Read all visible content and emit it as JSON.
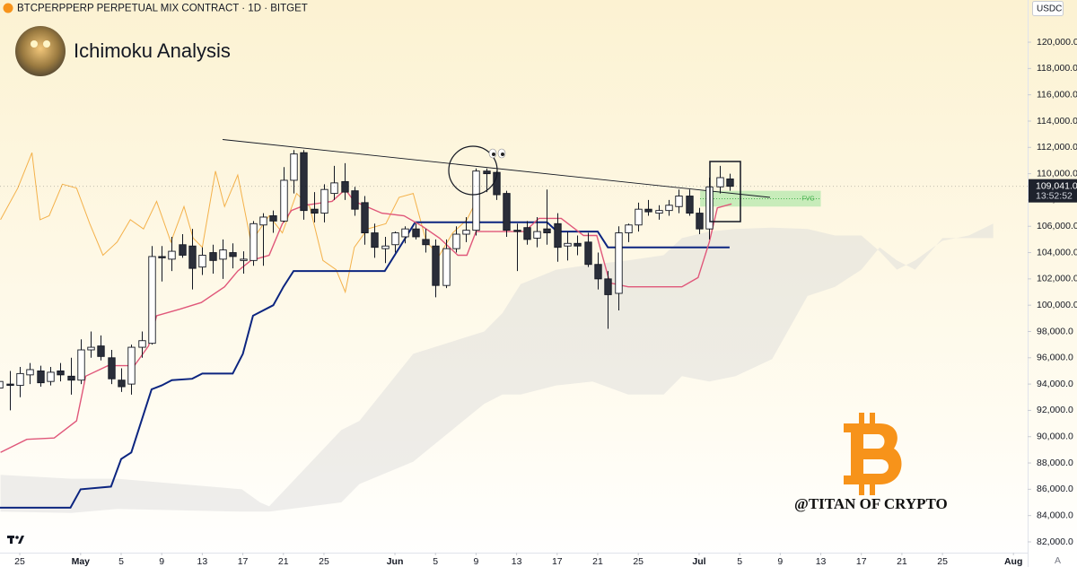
{
  "header": {
    "symbol": "BTCPERPPERP PERPETUAL MIX CONTRACT · 1D · BITGET",
    "title": "Ichimoku Analysis",
    "currency": "USDC",
    "watermark": "@TITAN OF CRYPTO",
    "auto_button": "A"
  },
  "chart_data": {
    "type": "candlestick",
    "xlim": [
      -1.95,
      99.4
    ],
    "ylim": [
      81180,
      123210
    ],
    "xticks": [
      {
        "value": 0,
        "label": "25"
      },
      {
        "value": 6,
        "label": "May"
      },
      {
        "value": 10,
        "label": "5"
      },
      {
        "value": 14,
        "label": "9"
      },
      {
        "value": 18,
        "label": "13"
      },
      {
        "value": 22,
        "label": "17"
      },
      {
        "value": 26,
        "label": "21"
      },
      {
        "value": 30,
        "label": "25"
      },
      {
        "value": 37,
        "label": "Jun"
      },
      {
        "value": 41,
        "label": "5"
      },
      {
        "value": 45,
        "label": "9"
      },
      {
        "value": 49,
        "label": "13"
      },
      {
        "value": 53,
        "label": "17"
      },
      {
        "value": 57,
        "label": "21"
      },
      {
        "value": 61,
        "label": "25"
      },
      {
        "value": 67,
        "label": "Jul"
      },
      {
        "value": 71,
        "label": "5"
      },
      {
        "value": 75,
        "label": "9"
      },
      {
        "value": 79,
        "label": "13"
      },
      {
        "value": 83,
        "label": "17"
      },
      {
        "value": 87,
        "label": "21"
      },
      {
        "value": 91,
        "label": "25"
      },
      {
        "value": 98,
        "label": "Aug"
      }
    ],
    "yticks": [
      {
        "value": 82000,
        "label": "82,000.0"
      },
      {
        "value": 84000,
        "label": "84,000.0"
      },
      {
        "value": 86000,
        "label": "86,000.0"
      },
      {
        "value": 88000,
        "label": "88,000.0"
      },
      {
        "value": 90000,
        "label": "90,000.0"
      },
      {
        "value": 92000,
        "label": "92,000.0"
      },
      {
        "value": 94000,
        "label": "94,000.0"
      },
      {
        "value": 96000,
        "label": "96,000.0"
      },
      {
        "value": 98000,
        "label": "98,000.0"
      },
      {
        "value": 100000,
        "label": "100,000.0"
      },
      {
        "value": 102000,
        "label": "102,000.0"
      },
      {
        "value": 104000,
        "label": "104,000.0"
      },
      {
        "value": 106000,
        "label": "106,000.0"
      },
      {
        "value": 108000,
        "label": "108,000.0"
      },
      {
        "value": 110000,
        "label": "110,000.0"
      },
      {
        "value": 112000,
        "label": "112,000.0"
      },
      {
        "value": 114000,
        "label": "114,000.0"
      },
      {
        "value": 116000,
        "label": "116,000.0"
      },
      {
        "value": 118000,
        "label": "118,000.0"
      },
      {
        "value": 120000,
        "label": "120,000.0"
      }
    ],
    "up_color": "#ffffff",
    "down_color": "#2a2e39",
    "candles": {
      "x": [
        -2,
        -1,
        0,
        1,
        2,
        3,
        4,
        5,
        6,
        7,
        8,
        9,
        10,
        11,
        12,
        13,
        14,
        15,
        16,
        17,
        18,
        19,
        20,
        21,
        22,
        23,
        24,
        25,
        26,
        27,
        28,
        29,
        30,
        31,
        32,
        33,
        34,
        35,
        36,
        37,
        38,
        39,
        40,
        41,
        42,
        43,
        44,
        45,
        46,
        47,
        48,
        49,
        50,
        51,
        52,
        53,
        54,
        55,
        56,
        57,
        58,
        59,
        60,
        61,
        62,
        63,
        64,
        65,
        66,
        67,
        68,
        69,
        70
      ],
      "open": [
        93700,
        94000,
        93900,
        94700,
        95000,
        94200,
        95000,
        94600,
        94300,
        96600,
        96900,
        96000,
        94300,
        94000,
        96800,
        97100,
        103700,
        103500,
        104600,
        104500,
        102900,
        104000,
        103500,
        104000,
        103400,
        103400,
        106100,
        106800,
        106400,
        109500,
        111600,
        107300,
        107000,
        108500,
        109400,
        108700,
        107800,
        105500,
        104300,
        104600,
        105200,
        105800,
        105000,
        104500,
        101500,
        104300,
        105400,
        105700,
        110200,
        110100,
        108500,
        105700,
        105900,
        105100,
        105800,
        106200,
        104500,
        104700,
        104800,
        103100,
        102000,
        100900,
        105500,
        106100,
        107300,
        107000,
        107200,
        107500,
        108300,
        107000,
        105800,
        109000,
        109600
      ],
      "high": [
        94800,
        95000,
        95300,
        95600,
        95400,
        95300,
        95600,
        96000,
        97400,
        98000,
        97700,
        96600,
        95200,
        97000,
        98000,
        104500,
        104500,
        105200,
        105400,
        105800,
        104400,
        104600,
        105000,
        104700,
        104100,
        106400,
        107000,
        107200,
        110500,
        111800,
        111800,
        108600,
        109200,
        110600,
        110800,
        109000,
        108300,
        106200,
        105200,
        105600,
        106000,
        106200,
        105800,
        105000,
        105000,
        106000,
        106700,
        110400,
        110400,
        110200,
        108700,
        106200,
        106400,
        106700,
        108800,
        107000,
        105600,
        105300,
        105500,
        104000,
        102600,
        106000,
        106200,
        107800,
        108000,
        107600,
        108000,
        108800,
        108800,
        107400,
        109700,
        110600,
        110000
      ],
      "low": [
        92400,
        92000,
        93000,
        94000,
        93800,
        93900,
        94200,
        93200,
        94000,
        96000,
        95800,
        94000,
        93400,
        93200,
        96000,
        97000,
        101800,
        102600,
        103600,
        101200,
        102300,
        102400,
        102000,
        102800,
        102400,
        103000,
        103000,
        105500,
        106300,
        108500,
        106500,
        106300,
        106300,
        108000,
        108000,
        106800,
        104600,
        103600,
        103200,
        104000,
        104700,
        105000,
        104000,
        100600,
        101300,
        104000,
        104800,
        105300,
        108600,
        108000,
        105200,
        102600,
        104600,
        104400,
        104600,
        103300,
        103400,
        103800,
        102900,
        101200,
        98200,
        99600,
        104800,
        105600,
        106800,
        106500,
        106800,
        107000,
        106800,
        105400,
        105000,
        108500,
        108700
      ],
      "close": [
        94200,
        93900,
        94800,
        95100,
        94100,
        94900,
        94700,
        94300,
        96600,
        96800,
        96100,
        94400,
        93800,
        96800,
        97300,
        103700,
        103600,
        104100,
        103800,
        102800,
        103800,
        103400,
        104200,
        103700,
        103500,
        106200,
        106700,
        106400,
        109500,
        111500,
        107200,
        107000,
        108800,
        109300,
        108600,
        107300,
        105500,
        104400,
        104500,
        105500,
        105800,
        105200,
        104600,
        101500,
        104300,
        105400,
        105700,
        110200,
        110000,
        108400,
        105700,
        105600,
        105000,
        105600,
        105500,
        104400,
        104700,
        104500,
        103100,
        102000,
        100800,
        105500,
        106100,
        107300,
        107100,
        107200,
        107600,
        108300,
        107000,
        105800,
        109000,
        109700,
        109041
      ]
    },
    "lines": [
      {
        "color": "#0c2580",
        "x": [
          -2,
          5,
          6,
          9,
          10,
          11,
          13,
          14,
          15,
          17,
          18,
          21,
          22,
          23,
          25,
          26,
          27,
          36,
          39,
          40,
          52,
          53,
          57,
          58,
          70
        ],
        "values": [
          84600,
          84600,
          86000,
          86200,
          88300,
          88800,
          93600,
          93900,
          94300,
          94400,
          94800,
          94800,
          96300,
          99200,
          100000,
          101400,
          102600,
          102600,
          106300,
          106300,
          106300,
          105600,
          105600,
          104400,
          104400
        ]
      },
      {
        "color": "#e0577a",
        "x": [
          -1.9,
          0.7,
          3.4,
          5.6,
          6.5,
          8.7,
          11.3,
          12.7,
          13.5,
          15.8,
          17.9,
          20.2,
          21.5,
          22.8,
          24.6,
          25.9,
          26.8,
          28.1,
          30.8,
          32.1,
          33,
          35.7,
          37.9,
          39.7,
          41.4,
          43.2,
          44.1,
          45,
          47.2,
          49.8,
          51.2,
          53.4,
          55.6,
          56.9,
          58.2,
          60,
          65.3,
          66.9,
          68,
          68.8,
          70.2
        ],
        "values": [
          88800,
          89800,
          89900,
          91200,
          94600,
          95400,
          95400,
          96900,
          99200,
          99700,
          100200,
          101400,
          102600,
          103400,
          103800,
          106200,
          107200,
          107600,
          107900,
          108800,
          107900,
          107000,
          106800,
          106000,
          105100,
          103800,
          103800,
          105600,
          105600,
          105600,
          106600,
          106600,
          105300,
          105300,
          101700,
          101400,
          101400,
          102100,
          104800,
          107400,
          107700
        ]
      },
      {
        "color": "#f4b14a",
        "x": [
          -1.9,
          -0.2,
          1.2,
          2,
          2.9,
          4.2,
          5.6,
          6.9,
          8.2,
          9.6,
          10.9,
          12.2,
          13.5,
          14.9,
          16.2,
          17.1,
          18,
          19.3,
          20.2,
          21.5,
          22.8,
          24.6,
          25.9,
          27.3,
          28.6,
          29.9,
          31.2,
          32.1,
          33,
          34.3,
          36.1,
          37.4,
          38.8,
          40.1,
          41.4,
          42.7,
          44.1,
          45.4
        ],
        "values": [
          106500,
          108900,
          111600,
          106500,
          106800,
          109200,
          108900,
          106200,
          103800,
          104800,
          106500,
          105800,
          107900,
          104800,
          107500,
          105100,
          104400,
          110200,
          107500,
          109900,
          104800,
          106800,
          105500,
          108500,
          107500,
          103400,
          102700,
          101000,
          104400,
          105800,
          106200,
          108200,
          108500,
          104800,
          103800,
          105500,
          106500,
          108500
        ]
      }
    ],
    "cloud": {
      "color": "#d9d9d9",
      "x": [
        -1.9,
        5.1,
        9.6,
        21.9,
        23.7,
        24.6,
        31.7,
        33.5,
        38.8,
        45.8,
        47.6,
        49.4,
        52.9,
        56.5,
        60,
        63.5,
        65.3,
        68,
        70.6,
        74.2,
        77.7,
        80.4,
        83,
        84.8,
        86.5,
        88.3,
        91,
        93.6,
        96
      ],
      "span_a": [
        87100,
        86800,
        86800,
        86000,
        85000,
        84700,
        90500,
        91200,
        96300,
        98000,
        99400,
        101600,
        102700,
        103100,
        103400,
        103800,
        105100,
        105600,
        105800,
        105900,
        105800,
        105300,
        105300,
        104100,
        102700,
        103400,
        104900,
        105300,
        106200
      ],
      "span_b": [
        84300,
        84200,
        84500,
        84300,
        84300,
        84300,
        85000,
        86400,
        88100,
        92500,
        93200,
        93200,
        93900,
        94200,
        93200,
        93200,
        94600,
        94200,
        94600,
        95900,
        100700,
        101400,
        102700,
        104400,
        103400,
        102700,
        105100,
        105100,
        105100
      ]
    },
    "trendline": {
      "x": [
        20,
        74
      ],
      "values": [
        112600,
        108200
      ]
    },
    "fvg": {
      "label": "FVG",
      "x": [
        67.1,
        79
      ],
      "top": 108700,
      "bottom": 107500
    },
    "last_price": {
      "value": 109041,
      "label": "109,041.0",
      "countdown": "13:52:52"
    }
  }
}
